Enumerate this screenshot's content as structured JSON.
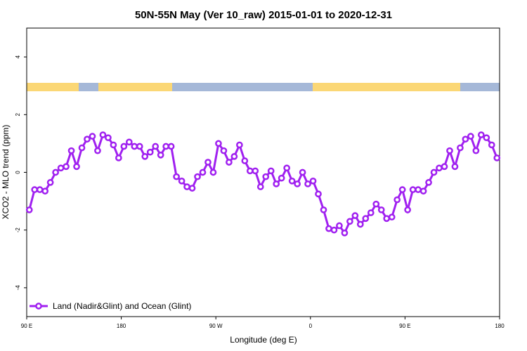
{
  "chart_data": {
    "type": "line",
    "title": "50N-55N May (Ver 10_raw)   2015-01-01 to 2020-12-31",
    "xlabel": "Longitude (deg E)",
    "ylabel": "XCO2 - MLO trend (ppm)",
    "xlim": [
      90,
      540
    ],
    "ylim": [
      -5,
      5
    ],
    "xticks": [
      {
        "value": 90,
        "label": "90 E"
      },
      180,
      {
        "value": 270,
        "label": "90 W"
      },
      {
        "value": 360,
        "label": "0"
      },
      {
        "value": 450,
        "label": "90 E"
      },
      {
        "value": 540,
        "label": "180"
      }
    ],
    "yticks": [
      -4,
      -2,
      0,
      2,
      4
    ],
    "legend": "bottom-left",
    "series": [
      {
        "name": "Land (Nadir&Glint) and Ocean (Glint)",
        "color": "#a020f0",
        "x": [
          92.5,
          97.5,
          102.5,
          107.5,
          112.5,
          117.5,
          122.5,
          127.5,
          132.5,
          137.5,
          142.5,
          147.5,
          152.5,
          157.5,
          162.5,
          167.5,
          172.5,
          177.5,
          182.5,
          187.5,
          192.5,
          197.5,
          202.5,
          207.5,
          212.5,
          217.5,
          222.5,
          227.5,
          232.5,
          237.5,
          242.5,
          247.5,
          252.5,
          257.5,
          262.5,
          267.5,
          272.5,
          277.5,
          282.5,
          287.5,
          292.5,
          297.5,
          302.5,
          307.5,
          312.5,
          317.5,
          322.5,
          327.5,
          332.5,
          337.5,
          342.5,
          347.5,
          352.5,
          357.5,
          362.5,
          367.5,
          372.5,
          377.5,
          382.5,
          387.5,
          392.5,
          397.5,
          402.5,
          407.5,
          412.5,
          417.5,
          422.5,
          427.5,
          432.5,
          437.5,
          442.5,
          447.5,
          452.5,
          457.5,
          462.5,
          467.5,
          472.5,
          477.5,
          482.5,
          487.5,
          492.5,
          497.5,
          502.5,
          507.5,
          512.5,
          517.5,
          522.5,
          527.5,
          532.5,
          537.5
        ],
        "values": [
          -1.3,
          -0.6,
          -0.6,
          -0.65,
          -0.35,
          0.0,
          0.15,
          0.2,
          0.75,
          0.2,
          0.85,
          1.15,
          1.25,
          0.75,
          1.3,
          1.2,
          0.95,
          0.5,
          0.9,
          1.05,
          0.9,
          0.9,
          0.55,
          0.7,
          0.9,
          0.6,
          0.9,
          0.9,
          -0.15,
          -0.3,
          -0.5,
          -0.55,
          -0.15,
          0.0,
          0.35,
          0.0,
          1.0,
          0.75,
          0.35,
          0.55,
          0.95,
          0.4,
          0.05,
          0.05,
          -0.5,
          -0.15,
          0.05,
          -0.4,
          -0.2,
          0.15,
          -0.3,
          -0.4,
          0.0,
          -0.4,
          -0.3,
          -0.75,
          -1.3,
          -1.95,
          -2.0,
          -1.85,
          -2.1,
          -1.7,
          -1.5,
          -1.8,
          -1.6,
          -1.4,
          -1.1,
          -1.3,
          -1.6,
          -1.55,
          -0.95,
          -0.6,
          -1.3,
          -0.6,
          -0.6,
          -0.65,
          -0.35,
          0.0,
          0.15,
          0.2,
          0.75,
          0.2,
          0.85,
          1.15,
          1.25,
          0.75,
          1.3,
          1.2,
          0.95,
          0.5
        ]
      }
    ]
  }
}
